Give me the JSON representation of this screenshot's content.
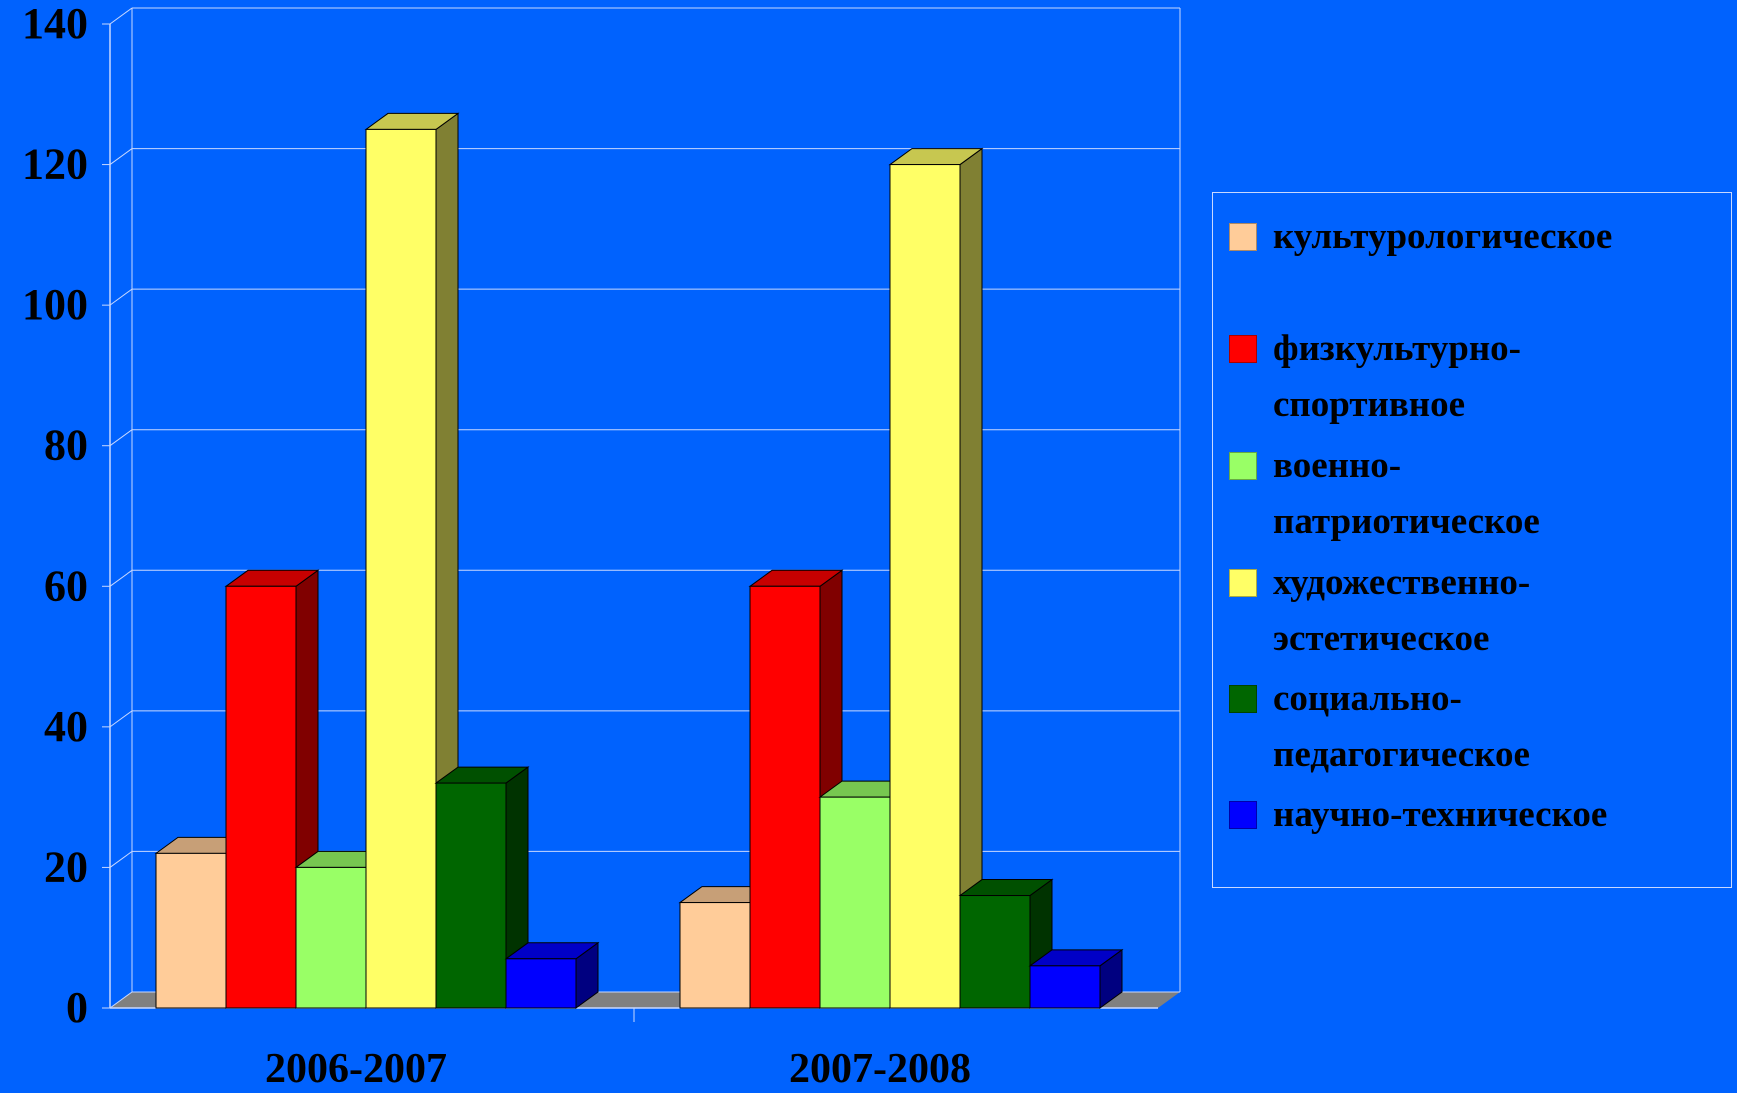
{
  "chart_data": {
    "type": "bar",
    "categories": [
      "2006-2007",
      "2007-2008"
    ],
    "series": [
      {
        "name": "культурологическое",
        "color": "#ffcc99",
        "values": [
          22,
          15
        ]
      },
      {
        "name": "физкультурно-спортивное",
        "color": "#ff0000",
        "values": [
          60,
          60
        ]
      },
      {
        "name": "военно-патриотическое",
        "color": "#99ff66",
        "values": [
          20,
          30
        ]
      },
      {
        "name": "художественно-эстетическое",
        "color": "#ffff66",
        "values": [
          125,
          120
        ]
      },
      {
        "name": "социально-педагогическое",
        "color": "#006600",
        "values": [
          32,
          16
        ]
      },
      {
        "name": "научно-техническое",
        "color": "#0000ff",
        "values": [
          7,
          6
        ]
      }
    ],
    "ylim": [
      0,
      140
    ],
    "yticks": [
      0,
      20,
      40,
      60,
      80,
      100,
      120,
      140
    ],
    "grid": true,
    "legend_position": "right",
    "background_color": "#0062fe"
  },
  "legend": {
    "items": [
      {
        "lines": [
          "культурологическое"
        ],
        "color": "#ffcc99"
      },
      {
        "lines": [
          "физкультурно-",
          "спортивное"
        ],
        "color": "#ff0000"
      },
      {
        "lines": [
          "военно-",
          "патриотическое"
        ],
        "color": "#99ff66"
      },
      {
        "lines": [
          "художественно-",
          "эстетическое"
        ],
        "color": "#ffff66"
      },
      {
        "lines": [
          "социально-",
          "педагогическое"
        ],
        "color": "#006600"
      },
      {
        "lines": [
          "научно-техническое"
        ],
        "color": "#0000ff"
      }
    ]
  }
}
